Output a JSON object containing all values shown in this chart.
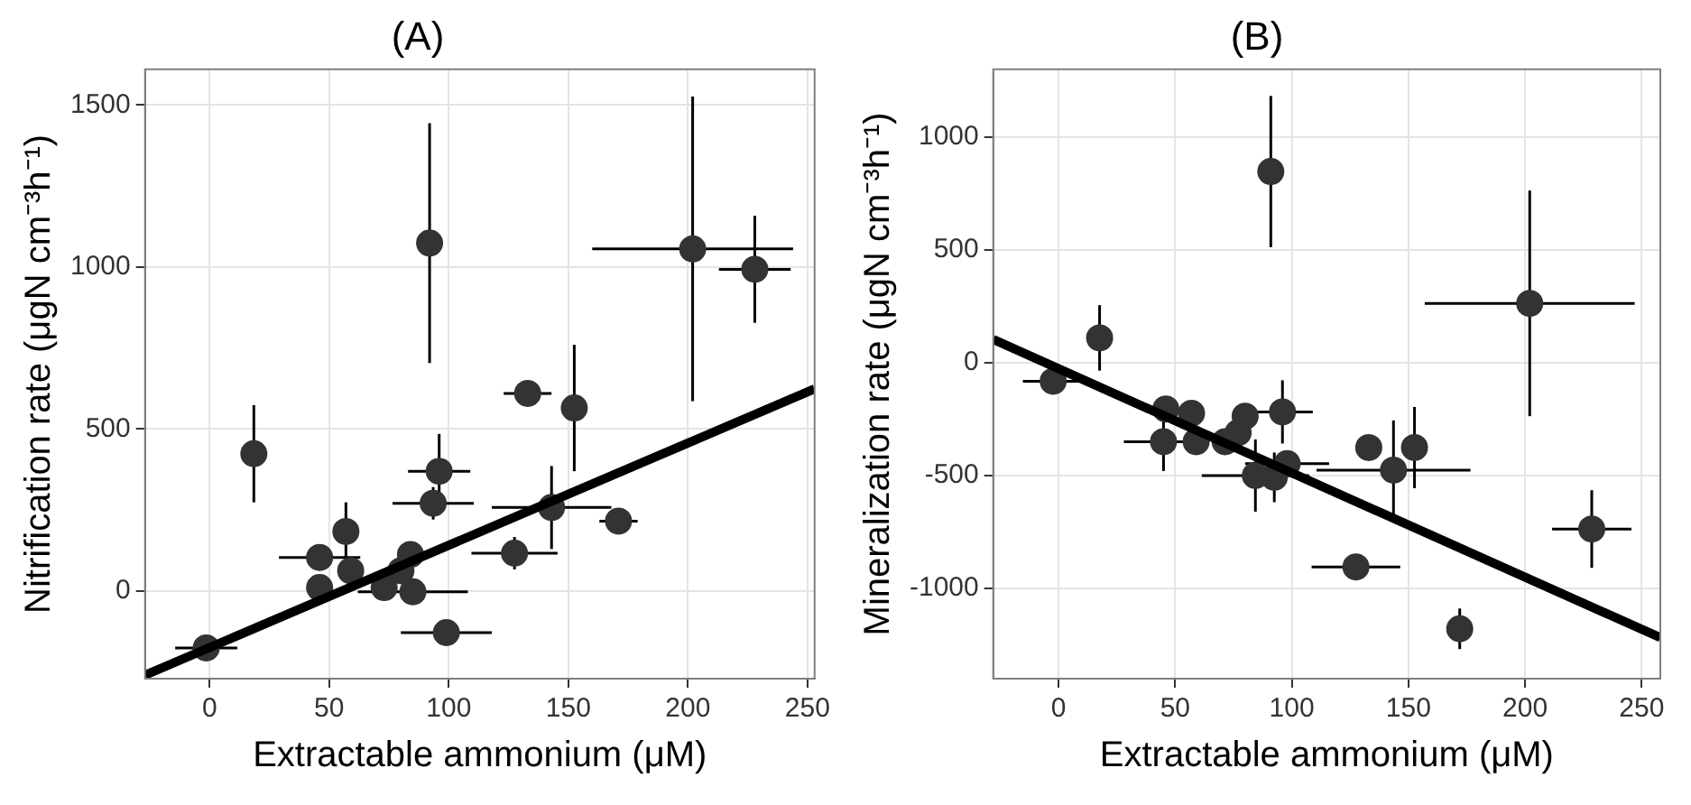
{
  "chart_data": [
    {
      "type": "scatter",
      "title": "(A)",
      "xlabel": "Extractable ammonium (μM)",
      "ylabel": "Nitrification rate (μgN cm⁻³h⁻¹)",
      "xlim": [
        -27,
        253
      ],
      "ylim": [
        -270,
        1610
      ],
      "xticks": [
        0,
        50,
        100,
        150,
        200,
        250
      ],
      "yticks": [
        0,
        500,
        1000,
        1500
      ],
      "grid": true,
      "series": [
        {
          "marker": "circle",
          "color": "#333333",
          "x": [
            -1.4,
            18.5,
            92,
            202,
            228,
            133,
            152.5,
            96,
            93.5,
            143,
            171,
            127.5,
            57,
            46,
            46,
            59,
            73,
            84,
            80,
            85,
            99
          ],
          "values": [
            -175,
            424,
            1074,
            1056,
            993,
            610,
            565,
            370,
            271,
            258,
            216,
            117,
            184,
            104,
            11,
            63,
            11,
            113,
            63,
            -2,
            -128
          ],
          "errors": [
            null,
            150,
            370,
            470,
            165,
            null,
            195,
            115,
            50,
            128,
            40,
            50,
            90,
            null,
            null,
            null,
            null,
            null,
            null,
            null,
            null
          ],
          "xerrors": [
            13,
            null,
            null,
            42,
            15,
            10,
            null,
            13,
            17,
            25,
            8,
            18,
            null,
            17,
            null,
            null,
            null,
            null,
            null,
            23,
            19
          ]
        },
        {
          "type": "line",
          "marker": "none",
          "color": "#000000",
          "x": [
            -27,
            253
          ],
          "values": [
            -259,
            624
          ]
        }
      ]
    },
    {
      "type": "scatter",
      "title": "(B)",
      "xlabel": "Extractable ammonium (μM)",
      "ylabel": "Mineralization rate (μgN cm⁻³h⁻¹)",
      "xlim": [
        -28,
        258
      ],
      "ylim": [
        -1400,
        1300
      ],
      "xticks": [
        0,
        50,
        100,
        150,
        200,
        250
      ],
      "yticks": [
        -1000,
        -500,
        0,
        500,
        1000
      ],
      "grid": true,
      "series": [
        {
          "marker": "circle",
          "color": "#333333",
          "x": [
            -2.3,
            17.6,
            91,
            202,
            228.6,
            172,
            127.5,
            133,
            152.6,
            143.6,
            96,
            98,
            92.5,
            84.4,
            80,
            77,
            71.4,
            57,
            46,
            45,
            59
          ],
          "values": [
            -82,
            110,
            847,
            263,
            -737,
            -1179,
            -905,
            -376,
            -376,
            -476,
            -218,
            -447,
            -508,
            -500,
            -237,
            -310,
            -350,
            -224,
            -205,
            -350,
            -350
          ],
          "errors": [
            null,
            145,
            335,
            500,
            172,
            90,
            null,
            null,
            180,
            220,
            140,
            null,
            110,
            160,
            null,
            null,
            null,
            null,
            null,
            130,
            null
          ],
          "xerrors": [
            13,
            null,
            null,
            45,
            17,
            null,
            19,
            null,
            null,
            33,
            13,
            18,
            null,
            23,
            null,
            null,
            null,
            null,
            null,
            17,
            null
          ]
        },
        {
          "type": "line",
          "marker": "none",
          "color": "#000000",
          "x": [
            -28,
            258
          ],
          "values": [
            103,
            -1218
          ]
        }
      ]
    }
  ]
}
